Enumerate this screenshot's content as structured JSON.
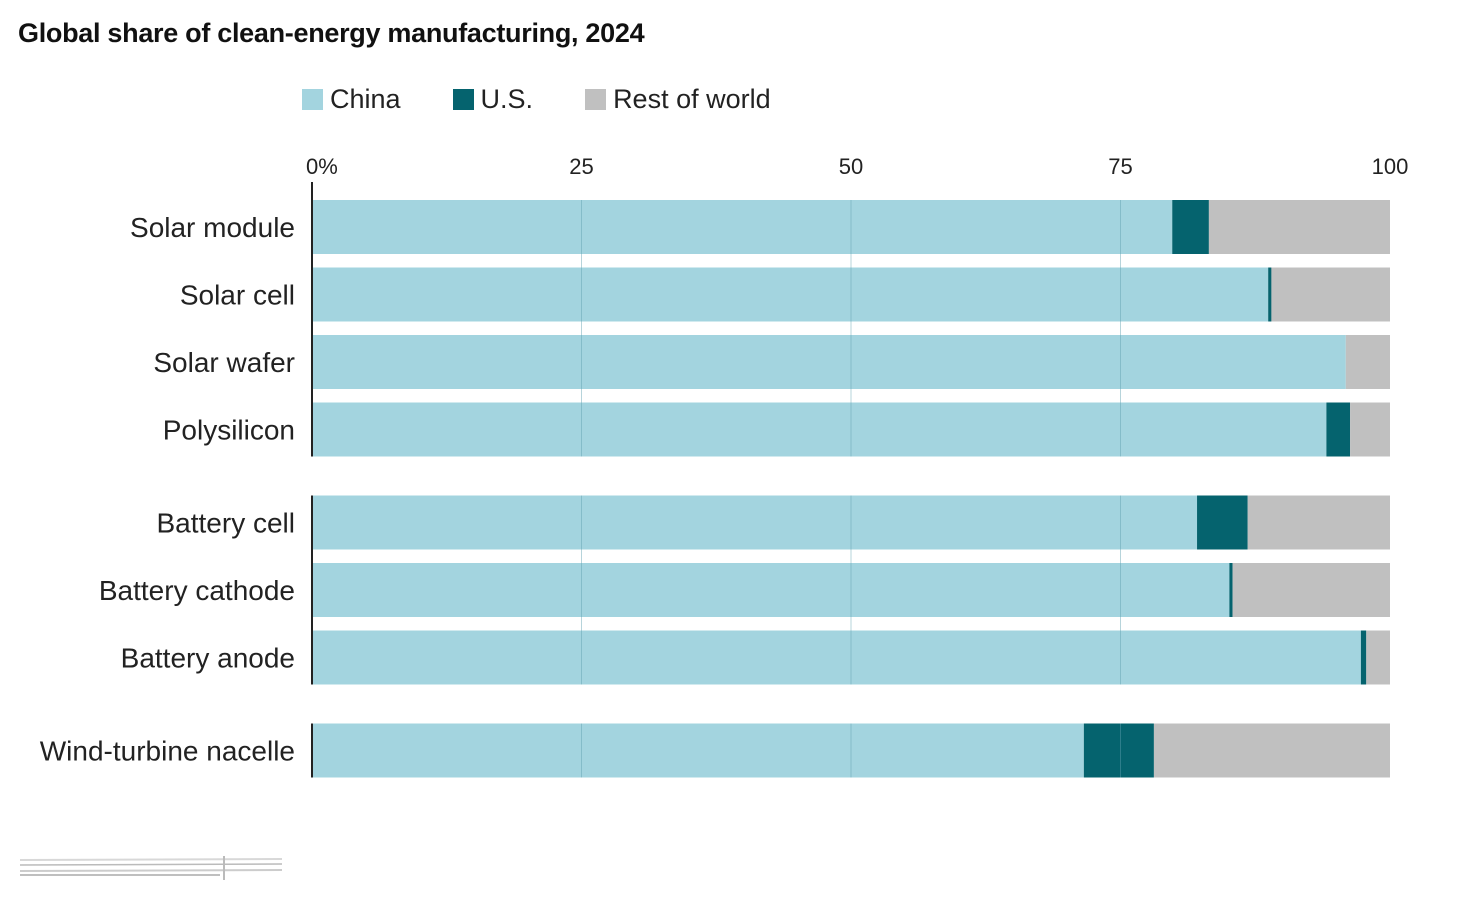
{
  "chart_data": {
    "type": "bar",
    "orientation": "horizontal",
    "stacked": true,
    "title": "Global share of clean-energy manufacturing, 2024",
    "xlim": [
      0,
      100
    ],
    "x_ticks": [
      "0%",
      "25",
      "50",
      "75",
      "100"
    ],
    "x_tick_values": [
      0,
      25,
      50,
      75,
      100
    ],
    "legend_position": "top",
    "grid": true,
    "categories": [
      "Solar module",
      "Solar cell",
      "Solar wafer",
      "Polysilicon",
      "Battery cell",
      "Battery cathode",
      "Battery anode",
      "Wind-turbine nacelle"
    ],
    "groups": [
      [
        0,
        1,
        2,
        3
      ],
      [
        4,
        5,
        6
      ],
      [
        7
      ]
    ],
    "series": [
      {
        "name": "China",
        "color": "#a3d4df",
        "values": [
          79.8,
          88.7,
          95.9,
          94.1,
          82.1,
          85.1,
          97.3,
          71.6
        ]
      },
      {
        "name": "U.S.",
        "color": "#05636e",
        "values": [
          3.4,
          0.3,
          0.0,
          2.2,
          4.7,
          0.3,
          0.5,
          6.5
        ]
      },
      {
        "name": "Rest of world",
        "color": "#c0c0c0",
        "values": [
          16.8,
          11.0,
          4.1,
          3.7,
          13.2,
          14.6,
          2.2,
          21.9
        ]
      }
    ]
  }
}
